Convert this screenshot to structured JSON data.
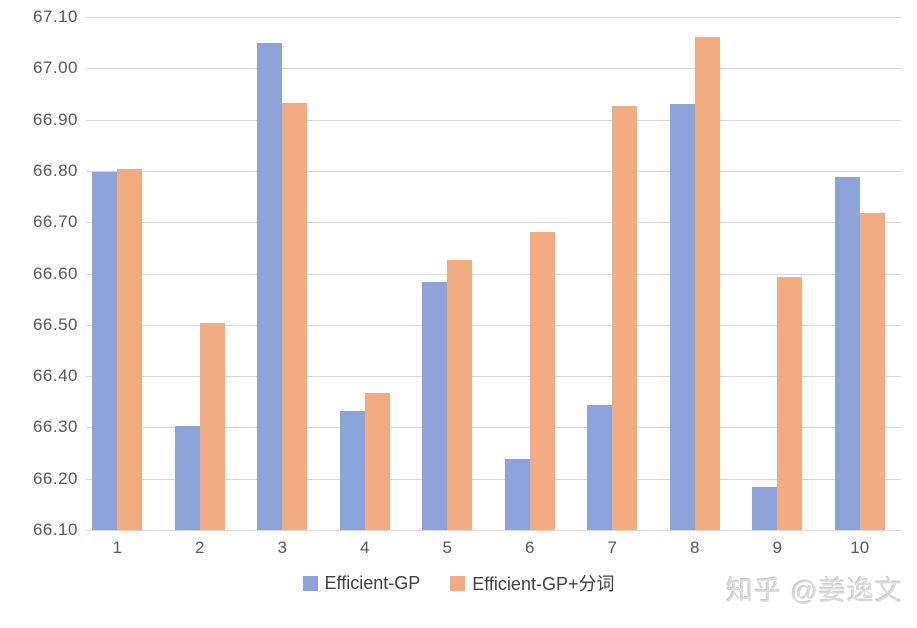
{
  "chart_data": {
    "type": "bar",
    "title": "",
    "categories": [
      "1",
      "2",
      "3",
      "4",
      "5",
      "6",
      "7",
      "8",
      "9",
      "10"
    ],
    "series": [
      {
        "name": "Efficient-GP",
        "color": "#8da4da",
        "values": [
          66.797,
          66.303,
          67.049,
          66.332,
          66.583,
          66.238,
          66.344,
          66.93,
          66.184,
          66.788
        ]
      },
      {
        "name": "Efficient-GP+分词",
        "color": "#f3ab81",
        "values": [
          66.803,
          66.504,
          66.932,
          66.367,
          66.626,
          66.681,
          66.927,
          67.061,
          66.593,
          66.718
        ]
      }
    ],
    "xlabel": "",
    "ylabel": "",
    "ylim": [
      66.1,
      67.1
    ],
    "y_ticks": [
      "67.10",
      "67.00",
      "66.90",
      "66.80",
      "66.70",
      "66.60",
      "66.50",
      "66.40",
      "66.30",
      "66.20",
      "66.10"
    ],
    "grid": true,
    "legend_position": "bottom"
  },
  "watermark": {
    "text": "知乎 @姜逸文"
  }
}
